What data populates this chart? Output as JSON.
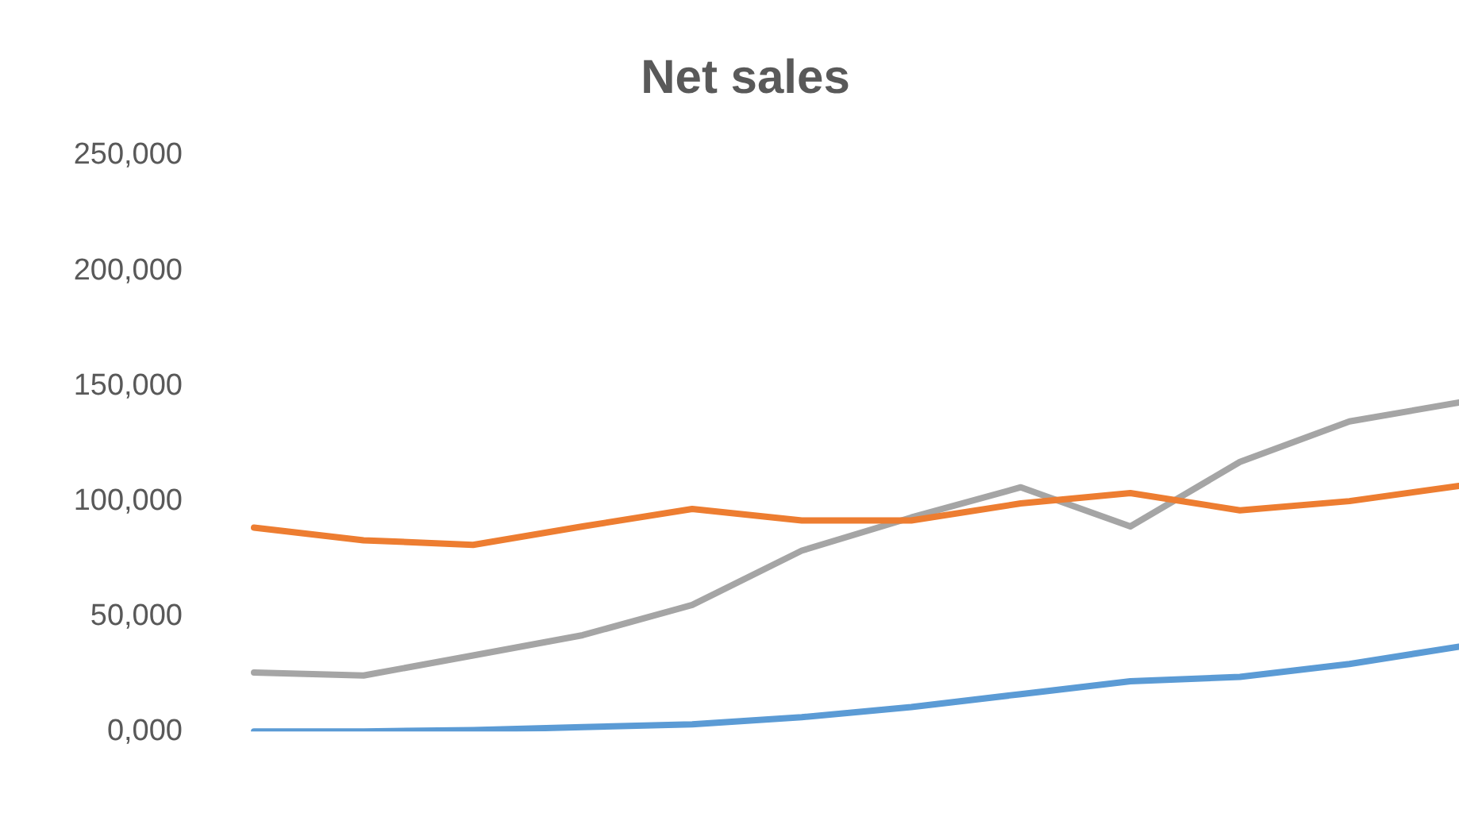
{
  "chart_data": {
    "type": "line",
    "title": "Net sales",
    "categories": [
      null,
      null,
      null,
      null,
      null,
      null,
      null,
      null,
      null,
      null,
      null,
      null
    ],
    "series": [
      {
        "color": "#5b9bd5",
        "values": [
          0,
          0,
          600,
          1900,
          3100,
          6200,
          10600,
          16200,
          21800,
          23700,
          29300,
          36800
        ]
      },
      {
        "color": "#ed7d31",
        "values": [
          88500,
          83000,
          81000,
          89000,
          96600,
          91600,
          91600,
          99000,
          103500,
          96000,
          100000,
          106600
        ]
      },
      {
        "color": "#a5a5a5",
        "values": [
          25600,
          24300,
          33000,
          41800,
          54900,
          78500,
          92900,
          106000,
          89000,
          117000,
          134600,
          142800
        ]
      }
    ],
    "ylim": [
      0,
      250000
    ],
    "yticks": [
      {
        "value": 0,
        "label": "0,000"
      },
      {
        "value": 50000,
        "label": "50,000"
      },
      {
        "value": 100000,
        "label": "100,000"
      },
      {
        "value": 150000,
        "label": "150,000"
      },
      {
        "value": 200000,
        "label": "200,000"
      },
      {
        "value": 250000,
        "label": "250,000"
      }
    ],
    "grid": false,
    "legend": false,
    "tick_labels": "y"
  }
}
